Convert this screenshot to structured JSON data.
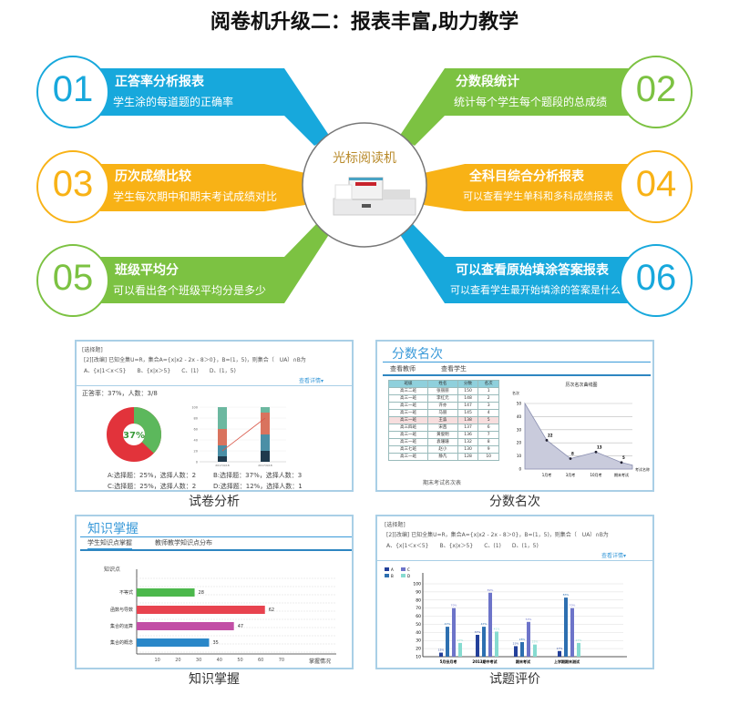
{
  "title": "阅卷机升级二：报表丰富,助力教学",
  "center": {
    "label": "光标阅读机",
    "image": "optical-mark-reader-machine"
  },
  "colors": {
    "blue": "#17a8dc",
    "orange": "#f8b216",
    "green": "#7cc242"
  },
  "features": [
    {
      "num": "01",
      "title": "正答率分析报表",
      "desc": "学生涂的每道题的正确率",
      "color": "blue"
    },
    {
      "num": "02",
      "title": "分数段统计",
      "desc": "统计每个学生每个题段的总成绩",
      "color": "green"
    },
    {
      "num": "03",
      "title": "历次成绩比较",
      "desc": "学生每次期中和期末考试成绩对比",
      "color": "orange"
    },
    {
      "num": "04",
      "title": "全科目综合分析报表",
      "desc": "可以查看学生单科和多科成绩报表",
      "color": "orange"
    },
    {
      "num": "05",
      "title": "班级平均分",
      "desc": "可以看出各个班级平均分是多少",
      "color": "green"
    },
    {
      "num": "06",
      "title": "可以查看原始填涂答案报表",
      "desc": "可以查看学生最开始填涂的答案是什么",
      "color": "blue"
    }
  ],
  "panels": {
    "paper": {
      "caption": "试卷分析",
      "q_type": "[选择题]",
      "q_text": "[2][改编] 已知全集U=R，集合A={x|x2 - 2x - 8＞0}，B=(1，5)，则集合（　UA）∩B为",
      "q_options": "A、{x|1＜x＜5}　　B、{x|x＞5}　　C、(1)　　D、(1，5)",
      "details": "查看详情",
      "accuracy": "正答率：37%，人数：3/8",
      "donut": {
        "correct_pct": 37,
        "label": "37%",
        "correct_color": "#5cb85c",
        "wrong_color": "#e2333b"
      },
      "stack": {
        "yticks": [
          "0",
          "20",
          "40",
          "60",
          "80",
          "100"
        ],
        "xlabels": [
          "2017/9/18",
          "2017/9/18"
        ],
        "bars": [
          [
            10,
            20,
            30,
            40
          ],
          [
            20,
            30,
            40,
            10
          ]
        ],
        "colors": [
          "#1f3a4d",
          "#4a8fa6",
          "#d9735e",
          "#6cb8a0"
        ],
        "line": [
          20,
          80
        ]
      },
      "options": [
        "A:选择题：25%，选择人数：2",
        "B:选择题：37%，选择人数：3",
        "C:选择题：25%，选择人数：2",
        "D:选择题：12%，选择人数：1"
      ]
    },
    "rank": {
      "caption": "分数名次",
      "header": "分数名次",
      "tabs": [
        "查看教师",
        "查看学生"
      ],
      "table": {
        "columns": [
          "班级",
          "姓名",
          "分数",
          "名次"
        ],
        "rows": [
          [
            "高三二班",
            "张丽丽",
            "150",
            "1"
          ],
          [
            "高三一班",
            "李红元",
            "148",
            "2"
          ],
          [
            "高三一班",
            "许亦",
            "147",
            "3"
          ],
          [
            "高三一班",
            "马丽",
            "145",
            "4"
          ],
          [
            "高三一班",
            "王淼",
            "138",
            "5"
          ],
          [
            "高三四班",
            "宋茜",
            "137",
            "6"
          ],
          [
            "高三一班",
            "黄俊明",
            "136",
            "7"
          ],
          [
            "高三一班",
            "袁珊珊",
            "132",
            "8"
          ],
          [
            "高三七班",
            "赵小",
            "130",
            "9"
          ],
          [
            "高三一班",
            "静凡",
            "128",
            "10"
          ]
        ],
        "highlight_row": 4,
        "caption": "期末考试名次表"
      },
      "chart_data": {
        "type": "area",
        "title": "历次名次曲线图",
        "ylabel": "名次",
        "xlabel": "考试名称",
        "ylim": [
          0,
          50
        ],
        "yticks": [
          0,
          10,
          20,
          30,
          40,
          50
        ],
        "categories": [
          "1月考",
          "3月考",
          "10月考",
          "期末考试"
        ],
        "points": [
          {
            "x": "start",
            "y": 50
          },
          {
            "x": "1月考",
            "y": 22
          },
          {
            "x": "3月考",
            "y": 8
          },
          {
            "x": "10月考",
            "y": 13
          },
          {
            "x": "期末考试",
            "y": 5
          },
          {
            "x": "end",
            "y": 3
          }
        ]
      }
    },
    "knowledge": {
      "caption": "知识掌握",
      "header": "知识掌握",
      "tabs": [
        "学生知识点掌握",
        "教师教学知识点分布"
      ],
      "chart_data": {
        "type": "bar",
        "orientation": "horizontal",
        "ylabel": "知识点",
        "xlabel": "掌握情况",
        "xticks": [
          10,
          20,
          30,
          40,
          50,
          60,
          70
        ],
        "categories": [
          "不等式",
          "函数与导数",
          "集合的运算",
          "集合的概念"
        ],
        "values": [
          28,
          62,
          47,
          35
        ],
        "colors": [
          "#4cb84c",
          "#e8434f",
          "#c24fa6",
          "#2a87c8"
        ]
      }
    },
    "question": {
      "caption": "试题评价",
      "q_type": "[选择题]",
      "q_text": "[2][改编] 已知全集U=R，集合A={x|x2 - 2x - 8＞0}，B=(1，5)，则集合（　UA）∩B为",
      "q_options": "A、{x|1＜x＜5}　　B、{x|x＞5}　　C、(1)　　D、(1，5)",
      "details": "查看详情",
      "chart_data": {
        "type": "bar",
        "ylim": [
          10,
          100
        ],
        "yticks": [
          10,
          20,
          30,
          40,
          50,
          60,
          70,
          80,
          90,
          100
        ],
        "categories": [
          "5月份月考",
          "2013期中考试",
          "期末考试",
          "上学期期末测试"
        ],
        "series": [
          {
            "name": "A",
            "values": [
              15,
              37,
              23,
              17
            ],
            "color": "#23409a"
          },
          {
            "name": "B",
            "values": [
              47,
              47,
              28,
              83
            ],
            "color": "#2d6fb0"
          },
          {
            "name": "C",
            "values": [
              70,
              89,
              53,
              70
            ],
            "color": "#6d74c9"
          },
          {
            "name": "D",
            "values": [
              27,
              41,
              25,
              27
            ],
            "color": "#86dbd0"
          }
        ]
      }
    }
  }
}
